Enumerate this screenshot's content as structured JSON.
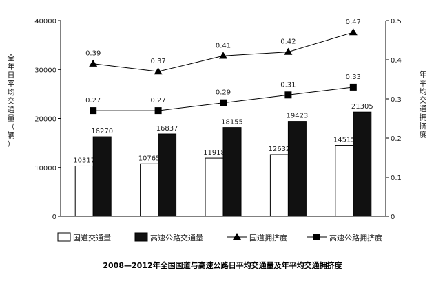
{
  "chart_data": {
    "type": "bar",
    "title": "2008—2012年全国国道与高速公路日平均交通量及年平均交通拥挤度",
    "categories": [
      "",
      "",
      "",
      "",
      ""
    ],
    "ylabel_left": "全年日平均交通量（辆）",
    "ylabel_right": "年平均交通拥挤度",
    "left_axis": {
      "min": 0,
      "max": 40000,
      "ticks": [
        "0",
        "10000",
        "20000",
        "30000",
        "40000"
      ]
    },
    "right_axis": {
      "min": 0,
      "max": 0.5,
      "ticks": [
        "0",
        "0.1",
        "0.2",
        "0.3",
        "0.4",
        "0.5"
      ]
    },
    "bar_series": [
      {
        "name": "国道交通量",
        "fill": "#ffffff",
        "values": [
          10317,
          10765,
          11918,
          12632,
          14515
        ]
      },
      {
        "name": "高速公路交通量",
        "fill": "#111111",
        "values": [
          16270,
          16837,
          18155,
          19423,
          21305
        ]
      }
    ],
    "line_series": [
      {
        "name": "国道拥挤度",
        "marker": "triangle",
        "values": [
          0.39,
          0.37,
          0.41,
          0.42,
          0.47
        ],
        "labels": [
          "0.39",
          "0.37",
          "0.41",
          "0.42",
          "0.47"
        ]
      },
      {
        "name": "高速公路拥挤度",
        "marker": "square",
        "values": [
          0.27,
          0.27,
          0.29,
          0.31,
          0.33
        ],
        "labels": [
          "0.27",
          "0.27",
          "0.29",
          "0.31",
          "0.33"
        ]
      }
    ],
    "bar_labels": [
      [
        "10317",
        "10765",
        "11918",
        "12632",
        "14515"
      ],
      [
        "16270",
        "16837",
        "18155",
        "19423",
        "21305"
      ]
    ],
    "legend": [
      "国道交通量",
      "高速公路交通量",
      "国道拥挤度",
      "高速公路拥挤度"
    ],
    "legend_position": "bottom",
    "grid": false
  }
}
